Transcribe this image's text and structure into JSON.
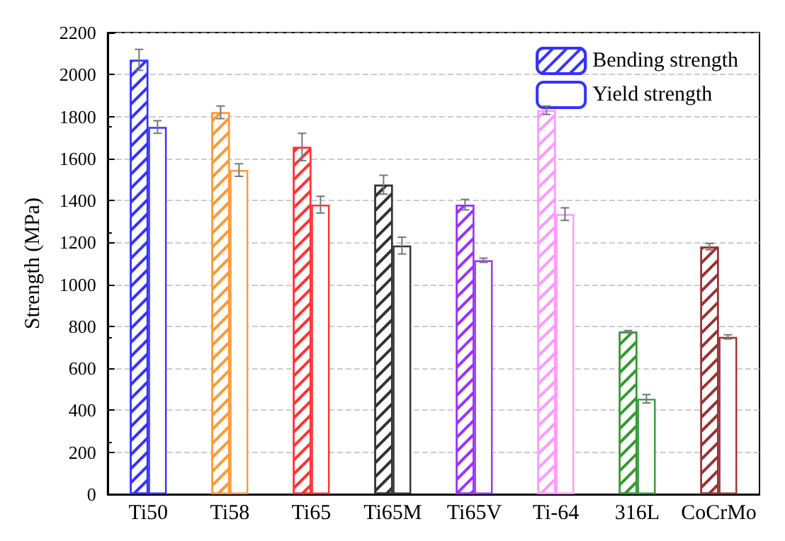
{
  "chart_data": {
    "type": "bar",
    "ylabel": "Strength (MPa)",
    "categories": [
      "Ti50",
      "Ti58",
      "Ti65",
      "Ti65M",
      "Ti65V",
      "Ti-64",
      "316L",
      "CoCrMo"
    ],
    "series": [
      {
        "name": "Bending strength",
        "color": "#3333ff",
        "colors": [
          "#3333ff",
          "#ff9933",
          "#ff3333",
          "#333333",
          "#9933ff",
          "#ff99ff",
          "#339933",
          "#993333"
        ],
        "values": [
          2070,
          1820,
          1655,
          1475,
          1380,
          1830,
          775,
          1180
        ],
        "errors": [
          50,
          30,
          65,
          45,
          25,
          20,
          5,
          15
        ]
      },
      {
        "name": "Yield strength",
        "color": "#3333ff",
        "colors": [
          "#3333ff",
          "#ff9933",
          "#ff3333",
          "#333333",
          "#9933ff",
          "#ff99ff",
          "#339933",
          "#993333"
        ],
        "values": [
          1750,
          1545,
          1380,
          1185,
          1115,
          1335,
          455,
          750
        ],
        "errors": [
          30,
          30,
          40,
          40,
          10,
          30,
          20,
          10
        ]
      }
    ],
    "ylim": [
      0,
      2200
    ],
    "yticks": [
      0,
      200,
      400,
      600,
      800,
      1000,
      1200,
      1400,
      1600,
      1800,
      2000,
      2200
    ],
    "grid": "y",
    "legend": "top right"
  }
}
